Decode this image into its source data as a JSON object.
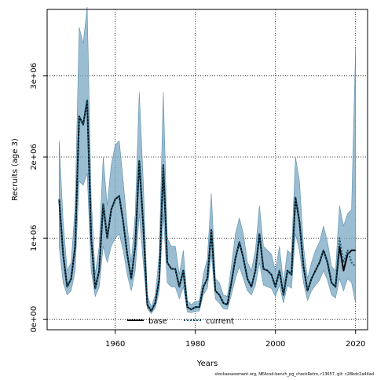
{
  "chart_data": {
    "type": "line",
    "title": "",
    "xlabel": "Years",
    "ylabel": "Recruits (age 3)",
    "xlim": [
      1943,
      2023
    ],
    "ylim": [
      -130000,
      3820000
    ],
    "x_ticks": [
      1960,
      1980,
      2000,
      2020
    ],
    "x_tick_labels": [
      "1960",
      "1980",
      "2000",
      "2020"
    ],
    "y_ticks": [
      0,
      1000000,
      2000000,
      3000000
    ],
    "y_tick_labels": [
      "0e+00",
      "1e+06",
      "2e+06",
      "3e+06"
    ],
    "grid": true,
    "legend_position": "bottom",
    "legend": [
      {
        "label": "base",
        "style": "solid",
        "color": "#000000"
      },
      {
        "label": "current",
        "style": "dotted",
        "color": "#1a5e7a"
      }
    ],
    "colors": {
      "band": "#7aa7c2",
      "band_edge": "#5b8fb0",
      "current": "#1a5e7a",
      "base": "#000000",
      "grid": "#000000"
    },
    "x": [
      1946,
      1947,
      1948,
      1949,
      1950,
      1951,
      1952,
      1953,
      1954,
      1955,
      1956,
      1957,
      1958,
      1959,
      1960,
      1961,
      1962,
      1963,
      1964,
      1965,
      1966,
      1967,
      1968,
      1969,
      1970,
      1971,
      1972,
      1973,
      1974,
      1975,
      1976,
      1977,
      1978,
      1979,
      1980,
      1981,
      1982,
      1983,
      1984,
      1985,
      1986,
      1987,
      1988,
      1989,
      1990,
      1991,
      1992,
      1993,
      1994,
      1995,
      1996,
      1997,
      1998,
      1999,
      2000,
      2001,
      2002,
      2003,
      2004,
      2005,
      2006,
      2007,
      2008,
      2009,
      2010,
      2011,
      2012,
      2013,
      2014,
      2015,
      2016,
      2017,
      2018,
      2019,
      2020
    ],
    "series": [
      {
        "name": "base",
        "values": [
          1480000,
          800000,
          400000,
          500000,
          900000,
          2500000,
          2400000,
          2700000,
          1000000,
          380000,
          600000,
          1420000,
          1000000,
          1350000,
          1480000,
          1520000,
          1200000,
          800000,
          500000,
          900000,
          1950000,
          1150000,
          180000,
          100000,
          200000,
          500000,
          1900000,
          700000,
          620000,
          620000,
          400000,
          600000,
          150000,
          120000,
          150000,
          150000,
          400000,
          500000,
          1100000,
          350000,
          300000,
          200000,
          180000,
          450000,
          750000,
          950000,
          750000,
          500000,
          400000,
          600000,
          1050000,
          620000,
          600000,
          550000,
          400000,
          600000,
          300000,
          600000,
          550000,
          1500000,
          1200000,
          650000,
          350000,
          500000,
          600000,
          700000,
          850000,
          700000,
          450000,
          400000,
          900000,
          600000,
          800000,
          850000,
          850000
        ]
      },
      {
        "name": "current",
        "values": [
          1480000,
          800000,
          400000,
          500000,
          900000,
          2500000,
          2400000,
          2700000,
          1000000,
          380000,
          600000,
          1420000,
          1000000,
          1350000,
          1480000,
          1520000,
          1200000,
          800000,
          500000,
          900000,
          1950000,
          1150000,
          180000,
          100000,
          200000,
          500000,
          1900000,
          700000,
          620000,
          620000,
          400000,
          600000,
          150000,
          120000,
          150000,
          150000,
          400000,
          500000,
          1100000,
          350000,
          300000,
          200000,
          180000,
          450000,
          750000,
          950000,
          750000,
          500000,
          400000,
          600000,
          1050000,
          620000,
          600000,
          550000,
          400000,
          600000,
          300000,
          600000,
          550000,
          1500000,
          1200000,
          650000,
          350000,
          500000,
          600000,
          700000,
          850000,
          700000,
          450000,
          400000,
          1000000,
          700000,
          850000,
          700000,
          650000
        ]
      }
    ],
    "band_lower": [
      900000,
      450000,
      300000,
      350000,
      600000,
      1700000,
      1650000,
      1800000,
      600000,
      280000,
      400000,
      900000,
      700000,
      900000,
      1000000,
      1050000,
      850000,
      550000,
      350000,
      600000,
      1300000,
      700000,
      130000,
      70000,
      140000,
      350000,
      1300000,
      450000,
      400000,
      400000,
      250000,
      400000,
      90000,
      80000,
      100000,
      100000,
      300000,
      380000,
      800000,
      250000,
      200000,
      130000,
      120000,
      300000,
      500000,
      650000,
      500000,
      350000,
      300000,
      420000,
      700000,
      420000,
      400000,
      380000,
      280000,
      420000,
      200000,
      420000,
      380000,
      1050000,
      850000,
      450000,
      230000,
      350000,
      420000,
      480000,
      600000,
      480000,
      300000,
      260000,
      500000,
      350000,
      500000,
      450000,
      200000
    ],
    "band_upper": [
      2200000,
      1200000,
      600000,
      700000,
      1400000,
      3600000,
      3400000,
      3850000,
      1500000,
      550000,
      900000,
      2000000,
      1400000,
      1900000,
      2150000,
      2200000,
      1700000,
      1150000,
      700000,
      1300000,
      2800000,
      1700000,
      300000,
      150000,
      300000,
      800000,
      2800000,
      1000000,
      900000,
      900000,
      550000,
      850000,
      230000,
      180000,
      220000,
      220000,
      550000,
      750000,
      1550000,
      500000,
      450000,
      300000,
      280000,
      650000,
      1050000,
      1250000,
      1050000,
      700000,
      600000,
      850000,
      1400000,
      900000,
      850000,
      800000,
      600000,
      900000,
      450000,
      850000,
      800000,
      2000000,
      1700000,
      900000,
      500000,
      700000,
      850000,
      950000,
      1150000,
      950000,
      650000,
      600000,
      1400000,
      1150000,
      1300000,
      1350000,
      3350000
    ],
    "footer": "stockassessment.org, NEAcod-bench_pg_checkRetro, r13657, git: c28bdc2a44ad"
  }
}
